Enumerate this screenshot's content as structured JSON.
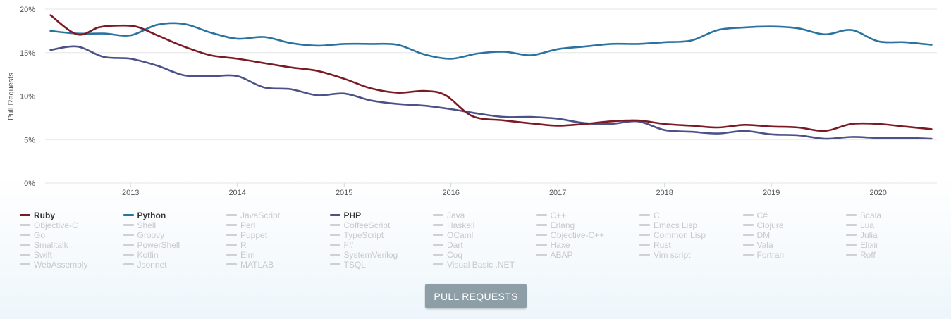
{
  "chart_data": {
    "type": "line",
    "ylabel": "Pull Requests",
    "xlabel": "",
    "yticks": [
      "0%",
      "5%",
      "10%",
      "15%",
      "20%"
    ],
    "ylim": [
      0,
      20
    ],
    "xlim": [
      2012.2,
      2020.55
    ],
    "xticks": [
      "2013",
      "2014",
      "2015",
      "2016",
      "2017",
      "2018",
      "2019",
      "2020"
    ],
    "grid": true,
    "legend_position": "bottom",
    "series": [
      {
        "name": "Ruby",
        "color": "#7b1a24",
        "points": [
          [
            2012.25,
            19.3
          ],
          [
            2012.5,
            17.1
          ],
          [
            2012.7,
            17.9
          ],
          [
            2012.85,
            18.1
          ],
          [
            2013.05,
            18.0
          ],
          [
            2013.25,
            17.0
          ],
          [
            2013.5,
            15.7
          ],
          [
            2013.75,
            14.7
          ],
          [
            2014.0,
            14.3
          ],
          [
            2014.25,
            13.8
          ],
          [
            2014.5,
            13.3
          ],
          [
            2014.75,
            12.9
          ],
          [
            2015.0,
            12.0
          ],
          [
            2015.25,
            10.9
          ],
          [
            2015.5,
            10.4
          ],
          [
            2015.75,
            10.6
          ],
          [
            2015.95,
            10.1
          ],
          [
            2016.2,
            7.7
          ],
          [
            2016.5,
            7.2
          ],
          [
            2016.8,
            6.8
          ],
          [
            2017.0,
            6.6
          ],
          [
            2017.25,
            6.8
          ],
          [
            2017.5,
            7.1
          ],
          [
            2017.75,
            7.2
          ],
          [
            2018.0,
            6.8
          ],
          [
            2018.25,
            6.6
          ],
          [
            2018.5,
            6.4
          ],
          [
            2018.75,
            6.7
          ],
          [
            2019.0,
            6.5
          ],
          [
            2019.25,
            6.4
          ],
          [
            2019.5,
            6.0
          ],
          [
            2019.75,
            6.8
          ],
          [
            2020.0,
            6.8
          ],
          [
            2020.25,
            6.5
          ],
          [
            2020.5,
            6.2
          ]
        ]
      },
      {
        "name": "Python",
        "color": "#2a73a0",
        "points": [
          [
            2012.25,
            17.5
          ],
          [
            2012.5,
            17.2
          ],
          [
            2012.75,
            17.2
          ],
          [
            2013.0,
            17.0
          ],
          [
            2013.25,
            18.2
          ],
          [
            2013.5,
            18.3
          ],
          [
            2013.75,
            17.3
          ],
          [
            2014.0,
            16.6
          ],
          [
            2014.25,
            16.8
          ],
          [
            2014.5,
            16.1
          ],
          [
            2014.75,
            15.8
          ],
          [
            2015.0,
            16.0
          ],
          [
            2015.25,
            16.0
          ],
          [
            2015.5,
            15.9
          ],
          [
            2015.75,
            14.8
          ],
          [
            2016.0,
            14.3
          ],
          [
            2016.25,
            14.9
          ],
          [
            2016.5,
            15.1
          ],
          [
            2016.75,
            14.7
          ],
          [
            2017.0,
            15.4
          ],
          [
            2017.25,
            15.7
          ],
          [
            2017.5,
            16.0
          ],
          [
            2017.75,
            16.0
          ],
          [
            2018.0,
            16.2
          ],
          [
            2018.25,
            16.4
          ],
          [
            2018.5,
            17.6
          ],
          [
            2018.75,
            17.9
          ],
          [
            2019.0,
            18.0
          ],
          [
            2019.25,
            17.8
          ],
          [
            2019.5,
            17.1
          ],
          [
            2019.75,
            17.6
          ],
          [
            2020.0,
            16.3
          ],
          [
            2020.25,
            16.2
          ],
          [
            2020.5,
            15.9
          ]
        ]
      },
      {
        "name": "PHP",
        "color": "#4a5288",
        "points": [
          [
            2012.25,
            15.3
          ],
          [
            2012.5,
            15.7
          ],
          [
            2012.75,
            14.5
          ],
          [
            2013.0,
            14.3
          ],
          [
            2013.25,
            13.5
          ],
          [
            2013.5,
            12.4
          ],
          [
            2013.75,
            12.3
          ],
          [
            2014.0,
            12.3
          ],
          [
            2014.25,
            11.0
          ],
          [
            2014.5,
            10.8
          ],
          [
            2014.75,
            10.1
          ],
          [
            2015.0,
            10.3
          ],
          [
            2015.25,
            9.5
          ],
          [
            2015.5,
            9.1
          ],
          [
            2015.75,
            8.9
          ],
          [
            2016.0,
            8.5
          ],
          [
            2016.25,
            8.0
          ],
          [
            2016.5,
            7.6
          ],
          [
            2016.75,
            7.6
          ],
          [
            2017.0,
            7.4
          ],
          [
            2017.25,
            6.9
          ],
          [
            2017.5,
            6.8
          ],
          [
            2017.75,
            7.1
          ],
          [
            2018.0,
            6.1
          ],
          [
            2018.25,
            5.9
          ],
          [
            2018.5,
            5.7
          ],
          [
            2018.75,
            6.0
          ],
          [
            2019.0,
            5.6
          ],
          [
            2019.25,
            5.5
          ],
          [
            2019.5,
            5.1
          ],
          [
            2019.75,
            5.3
          ],
          [
            2020.0,
            5.2
          ],
          [
            2020.25,
            5.2
          ],
          [
            2020.5,
            5.1
          ]
        ]
      }
    ]
  },
  "legend": {
    "items": [
      "Ruby",
      "Python",
      "JavaScript",
      "PHP",
      "Java",
      "C++",
      "C",
      "C#",
      "Scala",
      "Objective-C",
      "Shell",
      "Perl",
      "CoffeeScript",
      "Haskell",
      "Erlang",
      "Emacs Lisp",
      "Clojure",
      "Lua",
      "Go",
      "Groovy",
      "Puppet",
      "TypeScript",
      "OCaml",
      "Objective-C++",
      "Common Lisp",
      "DM",
      "Julia",
      "Smalltalk",
      "PowerShell",
      "R",
      "F#",
      "Dart",
      "Haxe",
      "Rust",
      "Vala",
      "Elixir",
      "Swift",
      "Kotlin",
      "Elm",
      "SystemVerilog",
      "Coq",
      "ABAP",
      "Vim script",
      "Fortran",
      "Roff",
      "WebAssembly",
      "Jsonnet",
      "MATLAB",
      "TSQL",
      "Visual Basic .NET"
    ],
    "active": [
      "Ruby",
      "Python",
      "PHP"
    ]
  },
  "button": {
    "label": "PULL REQUESTS"
  }
}
